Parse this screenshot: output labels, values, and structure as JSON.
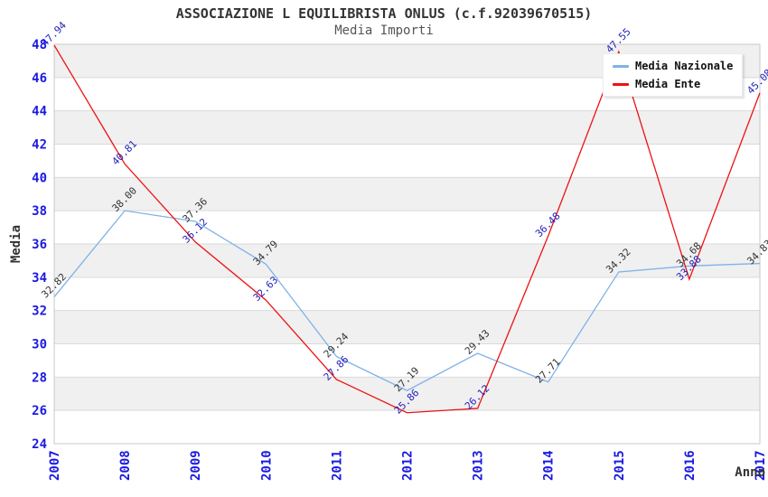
{
  "title": "ASSOCIAZIONE L EQUILIBRISTA ONLUS (c.f.92039670515)",
  "subtitle": "Media Importi",
  "colors": {
    "band": "#f0f0f0",
    "grid": "#d9d9d9",
    "border": "#c9c9c9",
    "axis_tick_blue": "#1a1ae0",
    "title_text": "#333333",
    "subtitle_text": "#555555",
    "series_nazionale": "#7fb2e8",
    "series_ente": "#ee1111",
    "label_dark": "#333333",
    "label_blue": "#2222bb"
  },
  "legend": {
    "position": "top-right",
    "items": [
      "Media Nazionale",
      "Media Ente"
    ]
  },
  "chart_data": {
    "type": "line",
    "title": "ASSOCIAZIONE L EQUILIBRISTA ONLUS (c.f.92039670515)",
    "subtitle": "Media Importi",
    "xlabel": "Anno",
    "ylabel": "Media",
    "x": [
      2007,
      2008,
      2009,
      2010,
      2011,
      2012,
      2013,
      2014,
      2015,
      2016,
      2017
    ],
    "ylim": [
      24,
      48
    ],
    "ytick_step": 2,
    "grid": "horizontal-alternating-bands",
    "legend_position": "top-right",
    "point_label_format": "2-decimals",
    "point_label_rotation": -45,
    "series": [
      {
        "name": "Media Nazionale",
        "color": "#7fb2e8",
        "label_color": "#333333",
        "values": [
          32.82,
          38.0,
          37.36,
          34.79,
          29.24,
          27.19,
          29.43,
          27.71,
          34.32,
          34.68,
          34.83
        ]
      },
      {
        "name": "Media Ente",
        "color": "#ee1111",
        "label_color": "#2222bb",
        "values": [
          47.94,
          40.81,
          36.12,
          32.63,
          27.86,
          25.86,
          26.12,
          36.48,
          47.55,
          33.88,
          45.08
        ]
      }
    ]
  }
}
